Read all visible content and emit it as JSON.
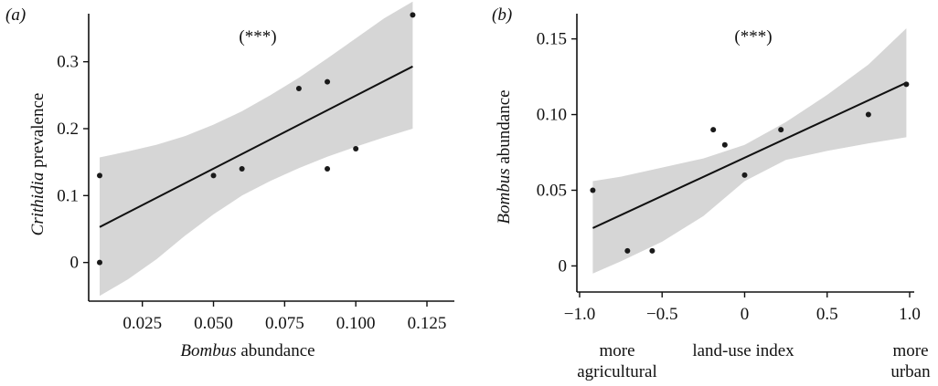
{
  "chart_data": [
    {
      "type": "scatter",
      "panel_label": "(a)",
      "annotation": "(***)",
      "xlabel": {
        "italic": "Bombus",
        "rest": " abundance"
      },
      "ylabel": {
        "italic": "Crithidia",
        "rest": " prevalence"
      },
      "xlim": [
        0.01,
        0.125
      ],
      "ylim": [
        -0.055,
        0.38
      ],
      "x_ticks": [
        0.025,
        0.05,
        0.075,
        0.1,
        0.125
      ],
      "x_tick_labels": [
        "0.025",
        "0.050",
        "0.075",
        "0.100",
        "0.125"
      ],
      "y_ticks": [
        0,
        0.1,
        0.2,
        0.3
      ],
      "y_tick_labels": [
        "0",
        "0.1",
        "0.2",
        "0.3"
      ],
      "points": [
        {
          "x": 0.01,
          "y": 0.13
        },
        {
          "x": 0.01,
          "y": 0.0
        },
        {
          "x": 0.05,
          "y": 0.13
        },
        {
          "x": 0.06,
          "y": 0.14
        },
        {
          "x": 0.08,
          "y": 0.26
        },
        {
          "x": 0.09,
          "y": 0.27
        },
        {
          "x": 0.09,
          "y": 0.14
        },
        {
          "x": 0.1,
          "y": 0.17
        },
        {
          "x": 0.12,
          "y": 0.37
        }
      ],
      "fit": {
        "x": [
          0.01,
          0.12
        ],
        "y": [
          0.053,
          0.293
        ]
      },
      "ci_band": {
        "x": [
          0.01,
          0.02,
          0.03,
          0.04,
          0.05,
          0.06,
          0.07,
          0.08,
          0.09,
          0.1,
          0.11,
          0.12
        ],
        "upper": [
          0.157,
          0.166,
          0.176,
          0.189,
          0.206,
          0.226,
          0.25,
          0.276,
          0.305,
          0.335,
          0.365,
          0.39
        ],
        "lower": [
          -0.05,
          -0.025,
          0.005,
          0.04,
          0.072,
          0.1,
          0.122,
          0.141,
          0.158,
          0.173,
          0.187,
          0.2
        ]
      },
      "grid": false
    },
    {
      "type": "scatter",
      "panel_label": "(b)",
      "annotation": "(***)",
      "xlabel": {
        "italic": "",
        "rest": "land-use index"
      },
      "x_end_labels": {
        "left": [
          "more",
          "agricultural"
        ],
        "right": [
          "more",
          "urban"
        ]
      },
      "ylabel": {
        "italic": "Bombus",
        "rest": " abundance"
      },
      "xlim": [
        -0.95,
        1.0
      ],
      "ylim": [
        -0.01,
        0.157
      ],
      "x_ticks": [
        -1.0,
        -0.5,
        0,
        0.5,
        1.0
      ],
      "x_tick_labels": [
        "−1.0",
        "−0.5",
        "0",
        "0.5",
        "1.0"
      ],
      "y_ticks": [
        0,
        0.05,
        0.1,
        0.15
      ],
      "y_tick_labels": [
        "0",
        "0.05",
        "0.10",
        "0.15"
      ],
      "points": [
        {
          "x": -0.92,
          "y": 0.05
        },
        {
          "x": -0.71,
          "y": 0.01
        },
        {
          "x": -0.56,
          "y": 0.01
        },
        {
          "x": -0.19,
          "y": 0.09
        },
        {
          "x": -0.12,
          "y": 0.08
        },
        {
          "x": 0.0,
          "y": 0.06
        },
        {
          "x": 0.22,
          "y": 0.09
        },
        {
          "x": 0.75,
          "y": 0.1
        },
        {
          "x": 0.98,
          "y": 0.12
        }
      ],
      "fit": {
        "x": [
          -0.92,
          0.98
        ],
        "y": [
          0.025,
          0.121
        ]
      },
      "ci_band": {
        "x": [
          -0.92,
          -0.75,
          -0.5,
          -0.25,
          0,
          0.25,
          0.5,
          0.75,
          0.98
        ],
        "upper": [
          0.056,
          0.059,
          0.065,
          0.071,
          0.08,
          0.095,
          0.113,
          0.133,
          0.157
        ],
        "lower": [
          -0.005,
          0.003,
          0.016,
          0.033,
          0.056,
          0.07,
          0.076,
          0.081,
          0.085
        ]
      },
      "grid": false
    }
  ]
}
